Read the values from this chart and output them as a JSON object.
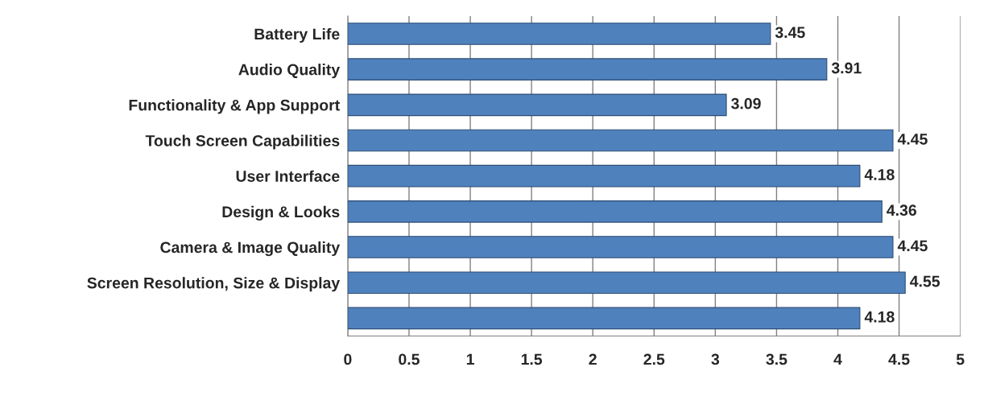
{
  "chart_data": {
    "type": "bar",
    "orientation": "horizontal",
    "categories": [
      "Battery Life",
      "Audio Quality",
      "Functionality & App Support",
      "Touch Screen Capabilities",
      "User Interface",
      "Design & Looks",
      "Camera & Image Quality",
      "Screen Resolution, Size & Display",
      null
    ],
    "values": [
      3.45,
      3.91,
      3.09,
      4.45,
      4.18,
      4.36,
      4.45,
      4.55,
      4.18
    ],
    "color": "#4f81bd",
    "xlim": [
      0,
      5
    ],
    "xticks": [
      0,
      0.5,
      1,
      1.5,
      2,
      2.5,
      3,
      3.5,
      4,
      4.5,
      5
    ],
    "grid": "x",
    "data_labels": true
  }
}
